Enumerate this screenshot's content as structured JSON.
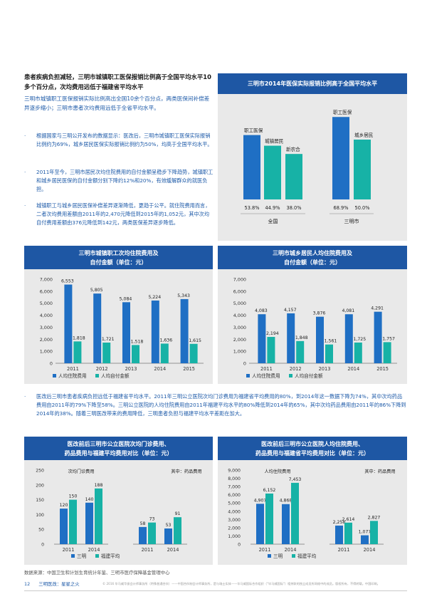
{
  "lead": {
    "title": "患者疾病负担减轻，三明市城镇职工医保报销比例高于全国平均水平10多个百分点，次均费用远低于福建省平均水平",
    "body": "三明市城镇职工医保报销实际比例高出全国10余个百分点，两类医保间补偿差异逐步缩小；三明市患者次均费用远低于全省平均水平。"
  },
  "bullets": [
    {
      "marker": "·",
      "text": "根据国家与三明公开发布的数据显示：医改后，三明市城镇职工医保实际报销比例约为69%，城乡居民医保实际报销比例约为50%，均高于全国平均水平。"
    },
    {
      "marker": "·",
      "text": "2011年至今，三明市居民次均住院费用的自付金额呈稳步下降趋势，城镇职工和城乡居民医保的自付金额分别下降约12%和20%，有效缓解群众的就医负担。"
    },
    {
      "marker": "·",
      "text": "城镇职工与城乡居民医保补偿差异逐渐降低，更趋于公平。就住院费用而言，二者次均费用差额由2011年的2,470元降低到2015年的1,052元，其中次均自付费用差额由376元降低到142元，两类医保差异逐步降低。"
    }
  ],
  "mid_note": {
    "marker": "·",
    "text": "医改后三明市患者疾病负担远低于福建省平均水平。2011年三明公立医院次均门诊费用为福建省平均费用的80%，到2014年这一数据下降为74%，其中次均药品费用由2011年的79%下降至58%。三明公立医院的人均住院费用由2011年福建平均水平的80%降低到2014年的65%，其中次均药品费用由2011年的86%下降到2014年的38%。随着三明医改带来的费用降低，三明患者负担与福建平均水平差距在加大。"
  },
  "source": "数据来源：中国卫生和计划生育统计年鉴、三明市医疗保障基金管理中心",
  "footer": {
    "page": "12",
    "section": "三明医改：星星之火",
    "fine_print": "© 2016 毕马威华振会计师事务所（特殊普通合伙）——中国合伙制会计师事务所，是与瑞士实体——毕马威国际合作组织（\"毕马威国际\"）相关联的独立成员所网络中的成员。版权所有，不得转载。中国印刷。"
  },
  "colors": {
    "blue": "#1f6fc4",
    "teal": "#17b2a6",
    "header": "#1e57a4",
    "panel": "#e9e9e9"
  },
  "chart_data": [
    {
      "id": "reimbursement",
      "type": "bar",
      "title": "三明市2014年医保实际报销比例高于全国平均水平",
      "groups": [
        {
          "label": "全国",
          "bars": [
            {
              "name": "职工医保",
              "value": 53.8,
              "label": "53.8%",
              "color": "#1f6fc4"
            },
            {
              "name": "城镇居民",
              "value": 44.9,
              "label": "44.9%",
              "color": "#17b2a6"
            },
            {
              "name": "新农合",
              "value": 38.0,
              "label": "38.0%",
              "color": "#17b2a6"
            }
          ]
        },
        {
          "label": "三明市",
          "bars": [
            {
              "name": "职工医保",
              "value": 68.9,
              "label": "68.9%",
              "color": "#1f6fc4"
            },
            {
              "name": "城乡居民",
              "value": 50.0,
              "label": "50.0%",
              "color": "#17b2a6"
            }
          ]
        }
      ],
      "ylim": [
        0,
        75
      ]
    },
    {
      "id": "employee",
      "type": "bar",
      "title_lines": [
        "三明市城镇职工次均住院费用及",
        "自付金额（单位：元）"
      ],
      "categories": [
        "2011",
        "2012",
        "2013",
        "2014",
        "2015"
      ],
      "series": [
        {
          "name": "人均住院费用",
          "values": [
            6553,
            5805,
            5084,
            5224,
            5343
          ],
          "labels": [
            "6,553",
            "5,805",
            "5,084",
            "5,224",
            "5,343"
          ],
          "color": "#1f6fc4"
        },
        {
          "name": "人均自付金额",
          "values": [
            1818,
            1721,
            1518,
            1636,
            1615
          ],
          "labels": [
            "1,818",
            "1,721",
            "1,518",
            "1,636",
            "1,615"
          ],
          "color": "#17b2a6"
        }
      ],
      "yticks": [
        "7,000",
        "6,000",
        "5,000",
        "4,000",
        "3,000",
        "2,000",
        "1,000",
        "0"
      ],
      "ylim": [
        0,
        7000
      ]
    },
    {
      "id": "resident",
      "type": "bar",
      "title_lines": [
        "三明市城乡居民人均住院费用及",
        "自付金额（单位：元）"
      ],
      "categories": [
        "2011",
        "2012",
        "2013",
        "2014",
        "2015"
      ],
      "series": [
        {
          "name": "人均住院费用",
          "values": [
            4083,
            4157,
            3876,
            4081,
            4291
          ],
          "labels": [
            "4,083",
            "4,157",
            "3,876",
            "4,081",
            "4,291"
          ],
          "color": "#1f6fc4"
        },
        {
          "name": "人均自付金额",
          "values": [
            2194,
            1848,
            1561,
            1725,
            1757
          ],
          "labels": [
            "2,194",
            "1,848",
            "1,561",
            "1,725",
            "1,757"
          ],
          "color": "#17b2a6"
        }
      ],
      "yticks": [
        "7,000",
        "6,000",
        "5,000",
        "4,000",
        "3,000",
        "2,000",
        "1,000",
        "0"
      ],
      "ylim": [
        0,
        7000
      ]
    },
    {
      "id": "outpatient",
      "type": "bar",
      "title_lines": [
        "医改前后三明市公立医院次均门诊费用、",
        "药品费用与福建平均费用对比（单位：元）"
      ],
      "subgroups": [
        {
          "caption": "次均门诊费用",
          "categories": [
            "2011",
            "2014"
          ]
        },
        {
          "caption": "其中：药品费用",
          "categories": [
            "2011",
            "2014"
          ]
        }
      ],
      "series": [
        {
          "name": "三明",
          "values": [
            120,
            140,
            58,
            53
          ],
          "labels": [
            "120",
            "140",
            "58",
            "53"
          ],
          "color": "#1f6fc4"
        },
        {
          "name": "福建平均",
          "values": [
            150,
            188,
            73,
            91
          ],
          "labels": [
            "150",
            "188",
            "73",
            "91"
          ],
          "color": "#17b2a6"
        }
      ],
      "yticks": [
        "250",
        "200",
        "150",
        "100",
        "50",
        "0"
      ],
      "ylim": [
        0,
        250
      ]
    },
    {
      "id": "inpatient",
      "type": "bar",
      "title_lines": [
        "医改前后三明市公立医院人均住院费用、",
        "药品费用与福建省平均费用对比（单位：元）"
      ],
      "subgroups": [
        {
          "caption": "人均住院费用",
          "categories": [
            "2011",
            "2014"
          ]
        },
        {
          "caption": "其中：药品费用",
          "categories": [
            "2011",
            "2014"
          ]
        }
      ],
      "series": [
        {
          "name": "三明",
          "values": [
            4907,
            4868,
            2258,
            1077
          ],
          "labels": [
            "4,907",
            "4,868",
            "2,258",
            "1,077"
          ],
          "color": "#1f6fc4"
        },
        {
          "name": "福建平均",
          "values": [
            6152,
            7453,
            2614,
            2827
          ],
          "labels": [
            "6,152",
            "7,453",
            "2,614",
            "2,827"
          ],
          "color": "#17b2a6"
        }
      ],
      "yticks": [
        "9,000",
        "8,000",
        "7,000",
        "6,000",
        "5,000",
        "4,000",
        "3,000",
        "2,000",
        "1,000",
        "0"
      ],
      "ylim": [
        0,
        9000
      ]
    }
  ]
}
